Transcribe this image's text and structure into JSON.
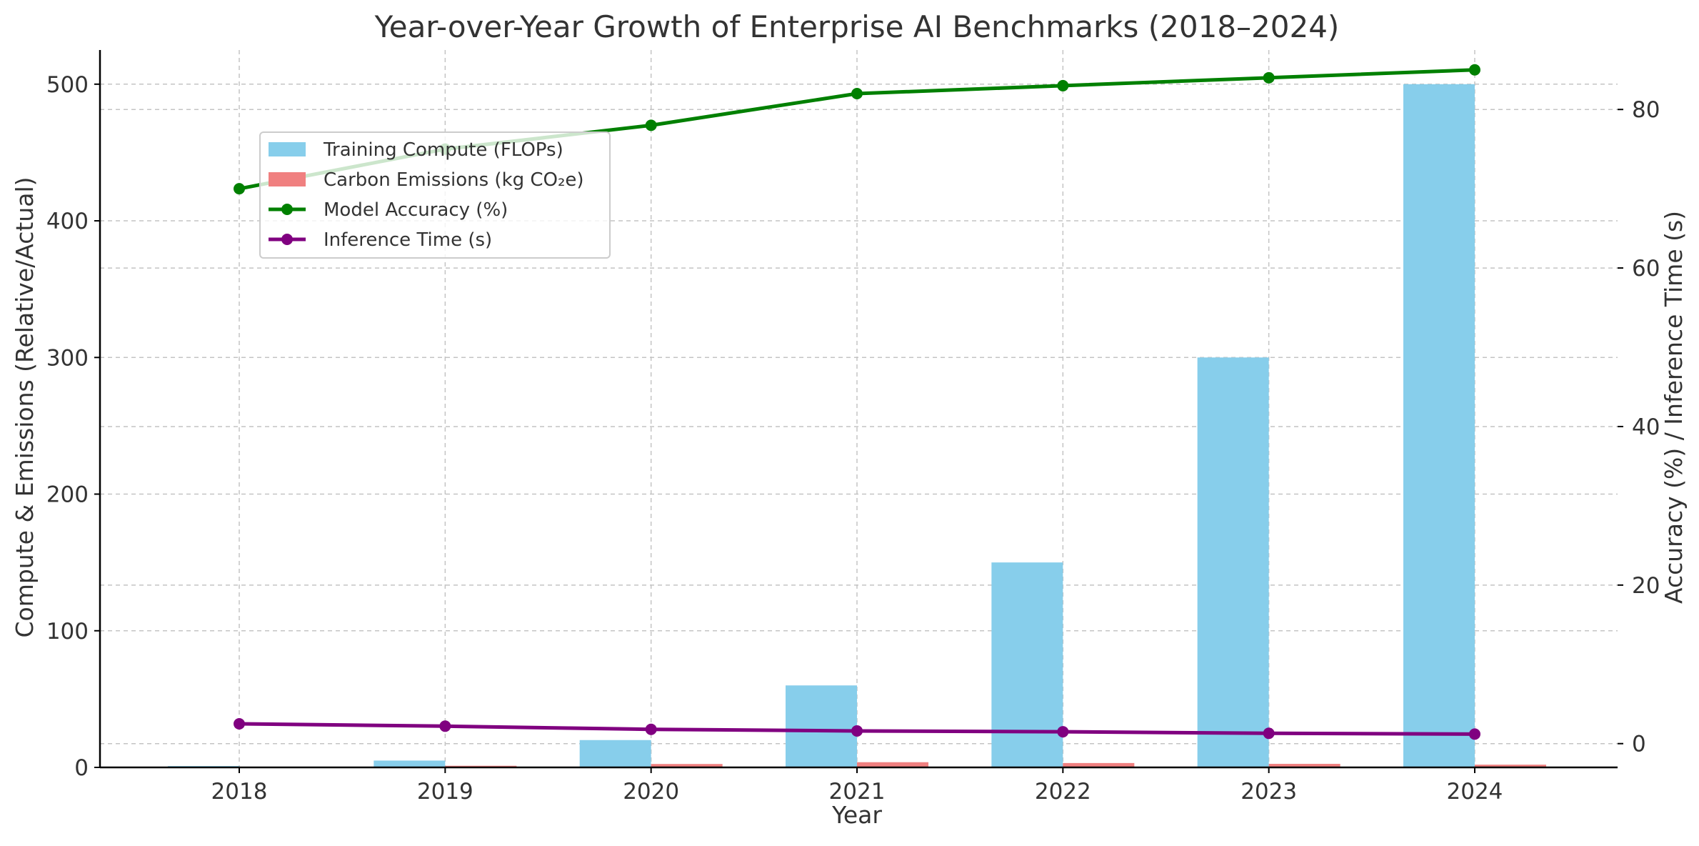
{
  "chart_data": {
    "type": "bar",
    "title": "Year-over-Year Growth of Enterprise AI Benchmarks (2018–2024)",
    "xlabel": "Year",
    "ylabel": "Compute & Emissions (Relative/Actual)",
    "y2label": "Accuracy (%) / Inference Time (s)",
    "categories": [
      "2018",
      "2019",
      "2020",
      "2021",
      "2022",
      "2023",
      "2024"
    ],
    "ylim": [
      0,
      525
    ],
    "y2lim": [
      -3,
      87.5
    ],
    "yticks": [
      0,
      100,
      200,
      300,
      400,
      500
    ],
    "y2ticks": [
      0,
      20,
      40,
      60,
      80
    ],
    "grid": true,
    "legend_position": "upper-left",
    "series": [
      {
        "name": "Training Compute (FLOPs)",
        "kind": "bar",
        "axis": "left",
        "color": "#87ceeb",
        "values": [
          1,
          5,
          20,
          60,
          150,
          300,
          500
        ]
      },
      {
        "name": "Carbon Emissions (kg CO₂e)",
        "kind": "bar",
        "axis": "left",
        "color": "#f08080",
        "values": [
          0.5,
          1.2,
          2.5,
          3.8,
          3.2,
          2.6,
          2.0
        ]
      },
      {
        "name": "Model Accuracy (%)",
        "kind": "line",
        "axis": "right",
        "color": "#008000",
        "values": [
          70,
          75,
          78,
          82,
          83,
          84,
          85
        ]
      },
      {
        "name": "Inference Time (s)",
        "kind": "line",
        "axis": "right",
        "color": "#800080",
        "values": [
          2.5,
          2.2,
          1.8,
          1.6,
          1.5,
          1.3,
          1.2
        ]
      }
    ]
  }
}
